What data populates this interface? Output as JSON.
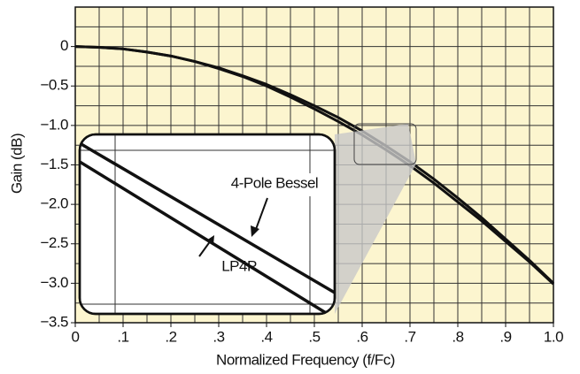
{
  "chart_data": {
    "type": "line",
    "x_label": "Normalized Frequency (f/Fc)",
    "y_label": "Gain (dB)",
    "x": [
      0,
      0.05,
      0.1,
      0.15,
      0.2,
      0.25,
      0.3,
      0.35,
      0.4,
      0.45,
      0.5,
      0.55,
      0.6,
      0.65,
      0.7,
      0.75,
      0.8,
      0.85,
      0.9,
      0.95,
      1.0
    ],
    "series": [
      {
        "name": "4-Pole Bessel",
        "color": "#111111",
        "values": [
          0,
          -0.01,
          -0.03,
          -0.07,
          -0.12,
          -0.19,
          -0.27,
          -0.37,
          -0.48,
          -0.61,
          -0.75,
          -0.9,
          -1.07,
          -1.26,
          -1.46,
          -1.68,
          -1.92,
          -2.17,
          -2.44,
          -2.71,
          -3.0
        ]
      },
      {
        "name": "LP4P",
        "color": "#111111",
        "values": [
          0,
          -0.01,
          -0.03,
          -0.07,
          -0.12,
          -0.19,
          -0.28,
          -0.38,
          -0.5,
          -0.64,
          -0.79,
          -0.95,
          -1.12,
          -1.31,
          -1.51,
          -1.73,
          -1.97,
          -2.21,
          -2.47,
          -2.73,
          -3.01
        ]
      }
    ],
    "xlim": [
      0,
      1.0
    ],
    "ylim": [
      -3.5,
      0.5
    ],
    "xticks": [
      0,
      {
        "value": 0.1,
        "label": ".1"
      },
      {
        "value": 0.2,
        "label": ".2"
      },
      {
        "value": 0.3,
        "label": ".3"
      },
      {
        "value": 0.4,
        "label": ".4"
      },
      {
        "value": 0.5,
        "label": ".5"
      },
      {
        "value": 0.6,
        "label": ".6"
      },
      {
        "value": 0.7,
        "label": ".7"
      },
      {
        "value": 0.8,
        "label": ".8"
      },
      {
        "value": 0.9,
        "label": ".9"
      },
      {
        "value": 1.0,
        "label": "1.0"
      }
    ],
    "yticks": [
      0,
      {
        "value": -0.5,
        "label": "−0.5"
      },
      {
        "value": -1.0,
        "label": "−1.0"
      },
      {
        "value": -1.5,
        "label": "−1.5"
      },
      {
        "value": -2.0,
        "label": "−2.0"
      },
      {
        "value": -2.5,
        "label": "−2.5"
      },
      {
        "value": -3.0,
        "label": "−3.0"
      },
      {
        "value": -3.5,
        "label": "−3.5"
      }
    ],
    "xgrid": [
      0.05,
      0.1,
      0.15,
      0.2,
      0.25,
      0.3,
      0.35,
      0.4,
      0.45,
      0.5,
      0.55,
      0.6,
      0.65,
      0.7,
      0.75,
      0.8,
      0.85,
      0.9,
      0.95
    ],
    "ygrid": [
      0.25,
      0,
      -0.25,
      -0.5,
      -0.75,
      -1.0,
      -1.25,
      -1.5,
      -1.75,
      -2.0,
      -2.25,
      -2.5,
      -2.75,
      -3.0,
      -3.25
    ],
    "grid": true,
    "background": "#fcf5cf"
  }
}
